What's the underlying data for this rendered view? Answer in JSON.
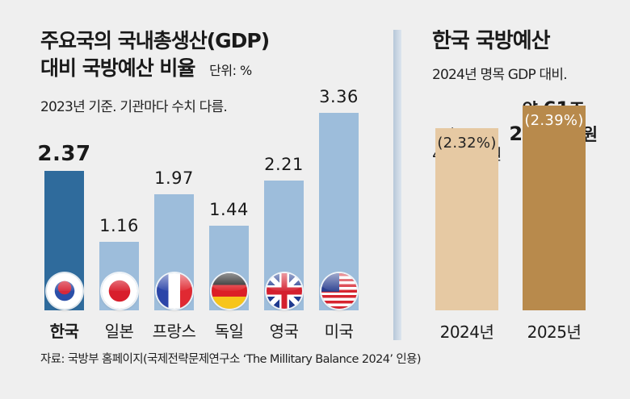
{
  "chart_data": [
    {
      "type": "bar",
      "title": "주요국의 국내총생산(GDP) 대비 국방예산 비율",
      "title_line1": "주요국의 국내총생산(GDP)",
      "title_line2": "대비 국방예산 비율",
      "unit": "단위: %",
      "subtitle": "2023년 기준. 기관마다 수치 다름.",
      "categories": [
        "한국",
        "일본",
        "프랑스",
        "독일",
        "영국",
        "미국"
      ],
      "flags": [
        "south-korea-flag-icon",
        "japan-flag-icon",
        "france-flag-icon",
        "germany-flag-icon",
        "uk-flag-icon",
        "usa-flag-icon"
      ],
      "values": [
        2.37,
        1.16,
        1.97,
        1.44,
        2.21,
        3.36
      ],
      "value_labels": [
        "2.37",
        "1.16",
        "1.97",
        "1.44",
        "2.21",
        "3.36"
      ],
      "highlight_index": 0,
      "colors": {
        "highlight": "#2f6b9c",
        "default": "#9dbddb"
      },
      "xlabel": "",
      "ylabel": "",
      "grid": false
    },
    {
      "type": "bar",
      "title": "한국 국방예산",
      "subtitle": "2024년 명목 GDP 대비.",
      "categories": [
        "2024년",
        "2025년"
      ],
      "values": [
        2.32,
        2.39
      ],
      "value_labels": [
        "(2.32%)",
        "(2.39%)"
      ],
      "amount_labels": [
        {
          "line1": "약 59조",
          "line2": "4000억 원"
        },
        {
          "line1_prefix": "약 ",
          "line1_num": "61",
          "line1_suffix": "조",
          "line2_num": "2000",
          "line2_suffix": "억 원"
        }
      ],
      "colors": [
        "#e6c9a3",
        "#b88a4c"
      ],
      "grid": false
    }
  ],
  "source": "자료: 국방부 홈페이지(국제전략문제연구소 ‘The Millitary Balance 2024’ 인용)"
}
